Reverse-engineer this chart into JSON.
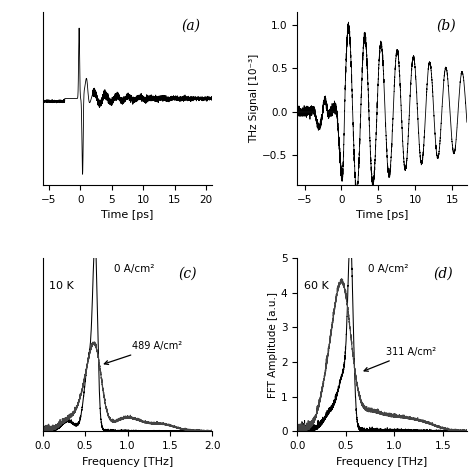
{
  "panel_a": {
    "label": "(a)",
    "xlabel": "Time [ps]",
    "xlim": [
      -6,
      21
    ],
    "xticks": [
      -5,
      0,
      5,
      10,
      15,
      20
    ],
    "ylim": [
      -1.6,
      1.6
    ]
  },
  "panel_b": {
    "label": "(b)",
    "ylabel": "THz Signal [10⁻³]",
    "xlabel": "Time [ps]",
    "xlim": [
      -6,
      17
    ],
    "xticks": [
      -5,
      0,
      5,
      10,
      15
    ],
    "ylim": [
      -0.85,
      1.15
    ],
    "yticks": [
      -0.5,
      0.0,
      0.5,
      1.0
    ]
  },
  "panel_c": {
    "label": "(c)",
    "temp_label": "10 K",
    "curve1_label": "0 A/cm²",
    "curve2_label": "489 A/cm²",
    "xlabel": "Frequency [THz]",
    "xlim": [
      0.0,
      2.0
    ],
    "xticks": [
      0.0,
      0.5,
      1.0,
      1.5,
      2.0
    ],
    "ylim": [
      0,
      5.5
    ],
    "yticks": []
  },
  "panel_d": {
    "label": "(d)",
    "temp_label": "60 K",
    "curve1_label": "0 A/cm²",
    "curve2_label": "311 A/cm²",
    "ylabel": "FFT Amplitude [a.u.]",
    "xlabel": "Frequency [THz]",
    "xlim": [
      0.0,
      1.75
    ],
    "xticks": [
      0.0,
      0.5,
      1.0,
      1.5
    ],
    "ylim": [
      0,
      5
    ],
    "yticks": [
      0,
      1,
      2,
      3,
      4,
      5
    ]
  },
  "line_color": "#000000",
  "bg_color": "#ffffff"
}
